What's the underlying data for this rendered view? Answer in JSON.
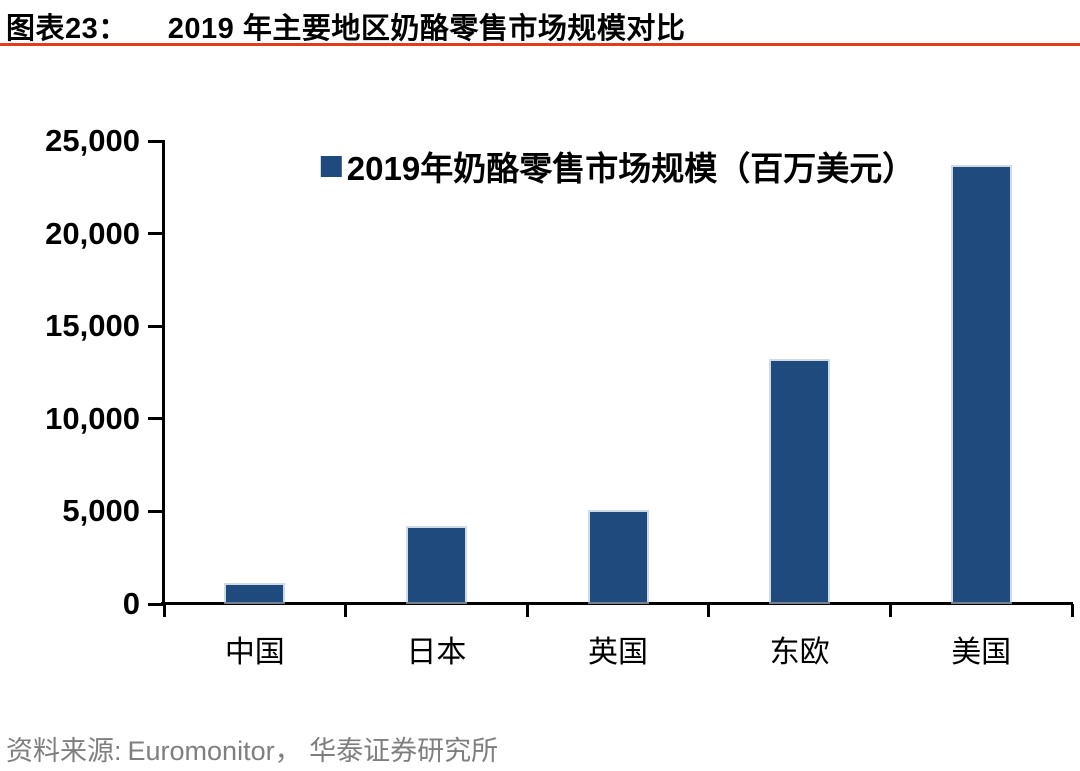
{
  "header": {
    "figure_label": "图表23：",
    "title": "2019 年主要地区奶酪零售市场规模对比"
  },
  "footer": {
    "source_label": "资料来源:",
    "source_text": "Euromonitor， 华泰证券研究所"
  },
  "colors": {
    "bar": "#1F4A7D",
    "accent_line": "#E43B1C",
    "axis": "#000000",
    "source_text": "#7F7F7F"
  },
  "chart_data": {
    "type": "bar",
    "title": "2019 年主要地区奶酪零售市场规模对比",
    "legend": "2019年奶酪零售市场规模（百万美元）",
    "legend_position": "top-center",
    "categories": [
      "中国",
      "日本",
      "英国",
      "东欧",
      "美国"
    ],
    "series": [
      {
        "name": "2019年奶酪零售市场规模（百万美元）",
        "values": [
          900,
          4000,
          4850,
          13000,
          23500
        ]
      }
    ],
    "ylim": [
      0,
      25000
    ],
    "yticks": [
      0,
      5000,
      10000,
      15000,
      20000,
      25000
    ],
    "ytick_labels": [
      "0",
      "5,000",
      "10,000",
      "15,000",
      "20,000",
      "25,000"
    ],
    "xlabel": "",
    "ylabel": "",
    "grid": false
  }
}
